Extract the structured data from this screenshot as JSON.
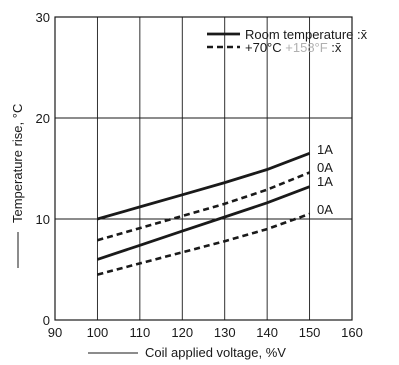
{
  "chart_data": {
    "type": "line",
    "xlabel": "Coil applied voltage, %V",
    "ylabel": "Temperature rise, °C",
    "xlim": [
      90,
      160
    ],
    "ylim": [
      0,
      30
    ],
    "xticks": [
      "90",
      "100",
      "110",
      "120",
      "130",
      "140",
      "150",
      "160"
    ],
    "yticks": [
      "0",
      "10",
      "20",
      "30"
    ],
    "grid": true,
    "legend_position": "top-right",
    "legend": [
      {
        "label": "Room temperature :x̄",
        "style": "solid"
      },
      {
        "label": "+70°C +158°F :x̄",
        "style": "dashed",
        "faded_part": "+158°F"
      }
    ],
    "series": [
      {
        "label": "1A",
        "style": "solid",
        "x": [
          100,
          110,
          120,
          130,
          140,
          150
        ],
        "y": [
          10.0,
          11.2,
          12.4,
          13.6,
          14.9,
          16.5
        ]
      },
      {
        "label": "0A",
        "style": "solid",
        "x": [
          100,
          110,
          120,
          130,
          140,
          150
        ],
        "y": [
          6.0,
          7.4,
          8.8,
          10.2,
          11.6,
          13.2
        ]
      },
      {
        "label": "1A",
        "style": "dashed",
        "x": [
          100,
          110,
          120,
          130,
          140,
          150
        ],
        "y": [
          7.9,
          9.1,
          10.3,
          11.5,
          12.9,
          14.6
        ]
      },
      {
        "label": "0A",
        "style": "dashed",
        "x": [
          100,
          110,
          120,
          130,
          140,
          150
        ],
        "y": [
          4.5,
          5.6,
          6.7,
          7.8,
          9.0,
          10.5
        ]
      }
    ],
    "colors": {
      "line": "#1a1a1a",
      "grid": "#1a1a1a",
      "faded_text": "#b0b0b0"
    }
  }
}
